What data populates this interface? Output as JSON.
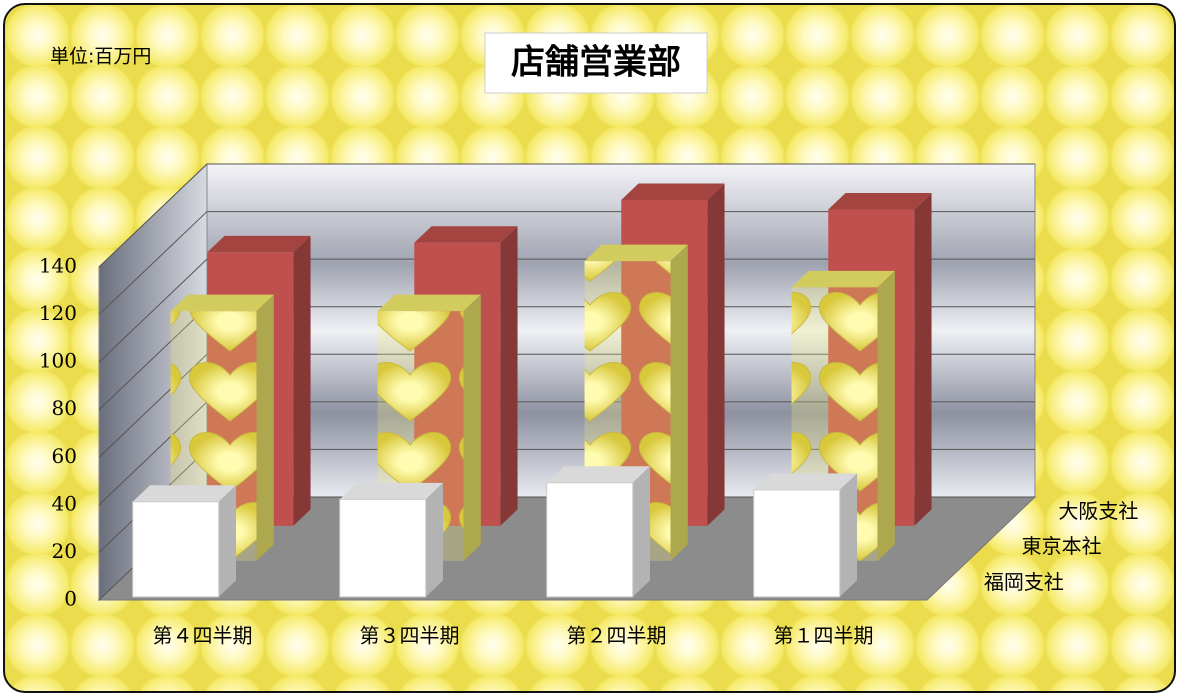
{
  "chart_data": {
    "type": "bar3d",
    "title": "店舗営業部",
    "subtitle": "単位:百万円",
    "categories": [
      "第４四半期",
      "第３四半期",
      "第２四半期",
      "第１四半期"
    ],
    "series": [
      {
        "name": "福岡支社",
        "color": "#ffffff",
        "values": [
          40,
          41,
          48,
          45
        ]
      },
      {
        "name": "東京本社",
        "color": "#f7f06e",
        "values": [
          105,
          105,
          126,
          115
        ]
      },
      {
        "name": "大阪支社",
        "color": "#c0504d",
        "values": [
          115,
          119,
          137,
          133
        ]
      }
    ],
    "ylim": [
      0,
      140
    ],
    "yticks": [
      0,
      20,
      40,
      60,
      80,
      100,
      120,
      140
    ],
    "grid": true
  }
}
